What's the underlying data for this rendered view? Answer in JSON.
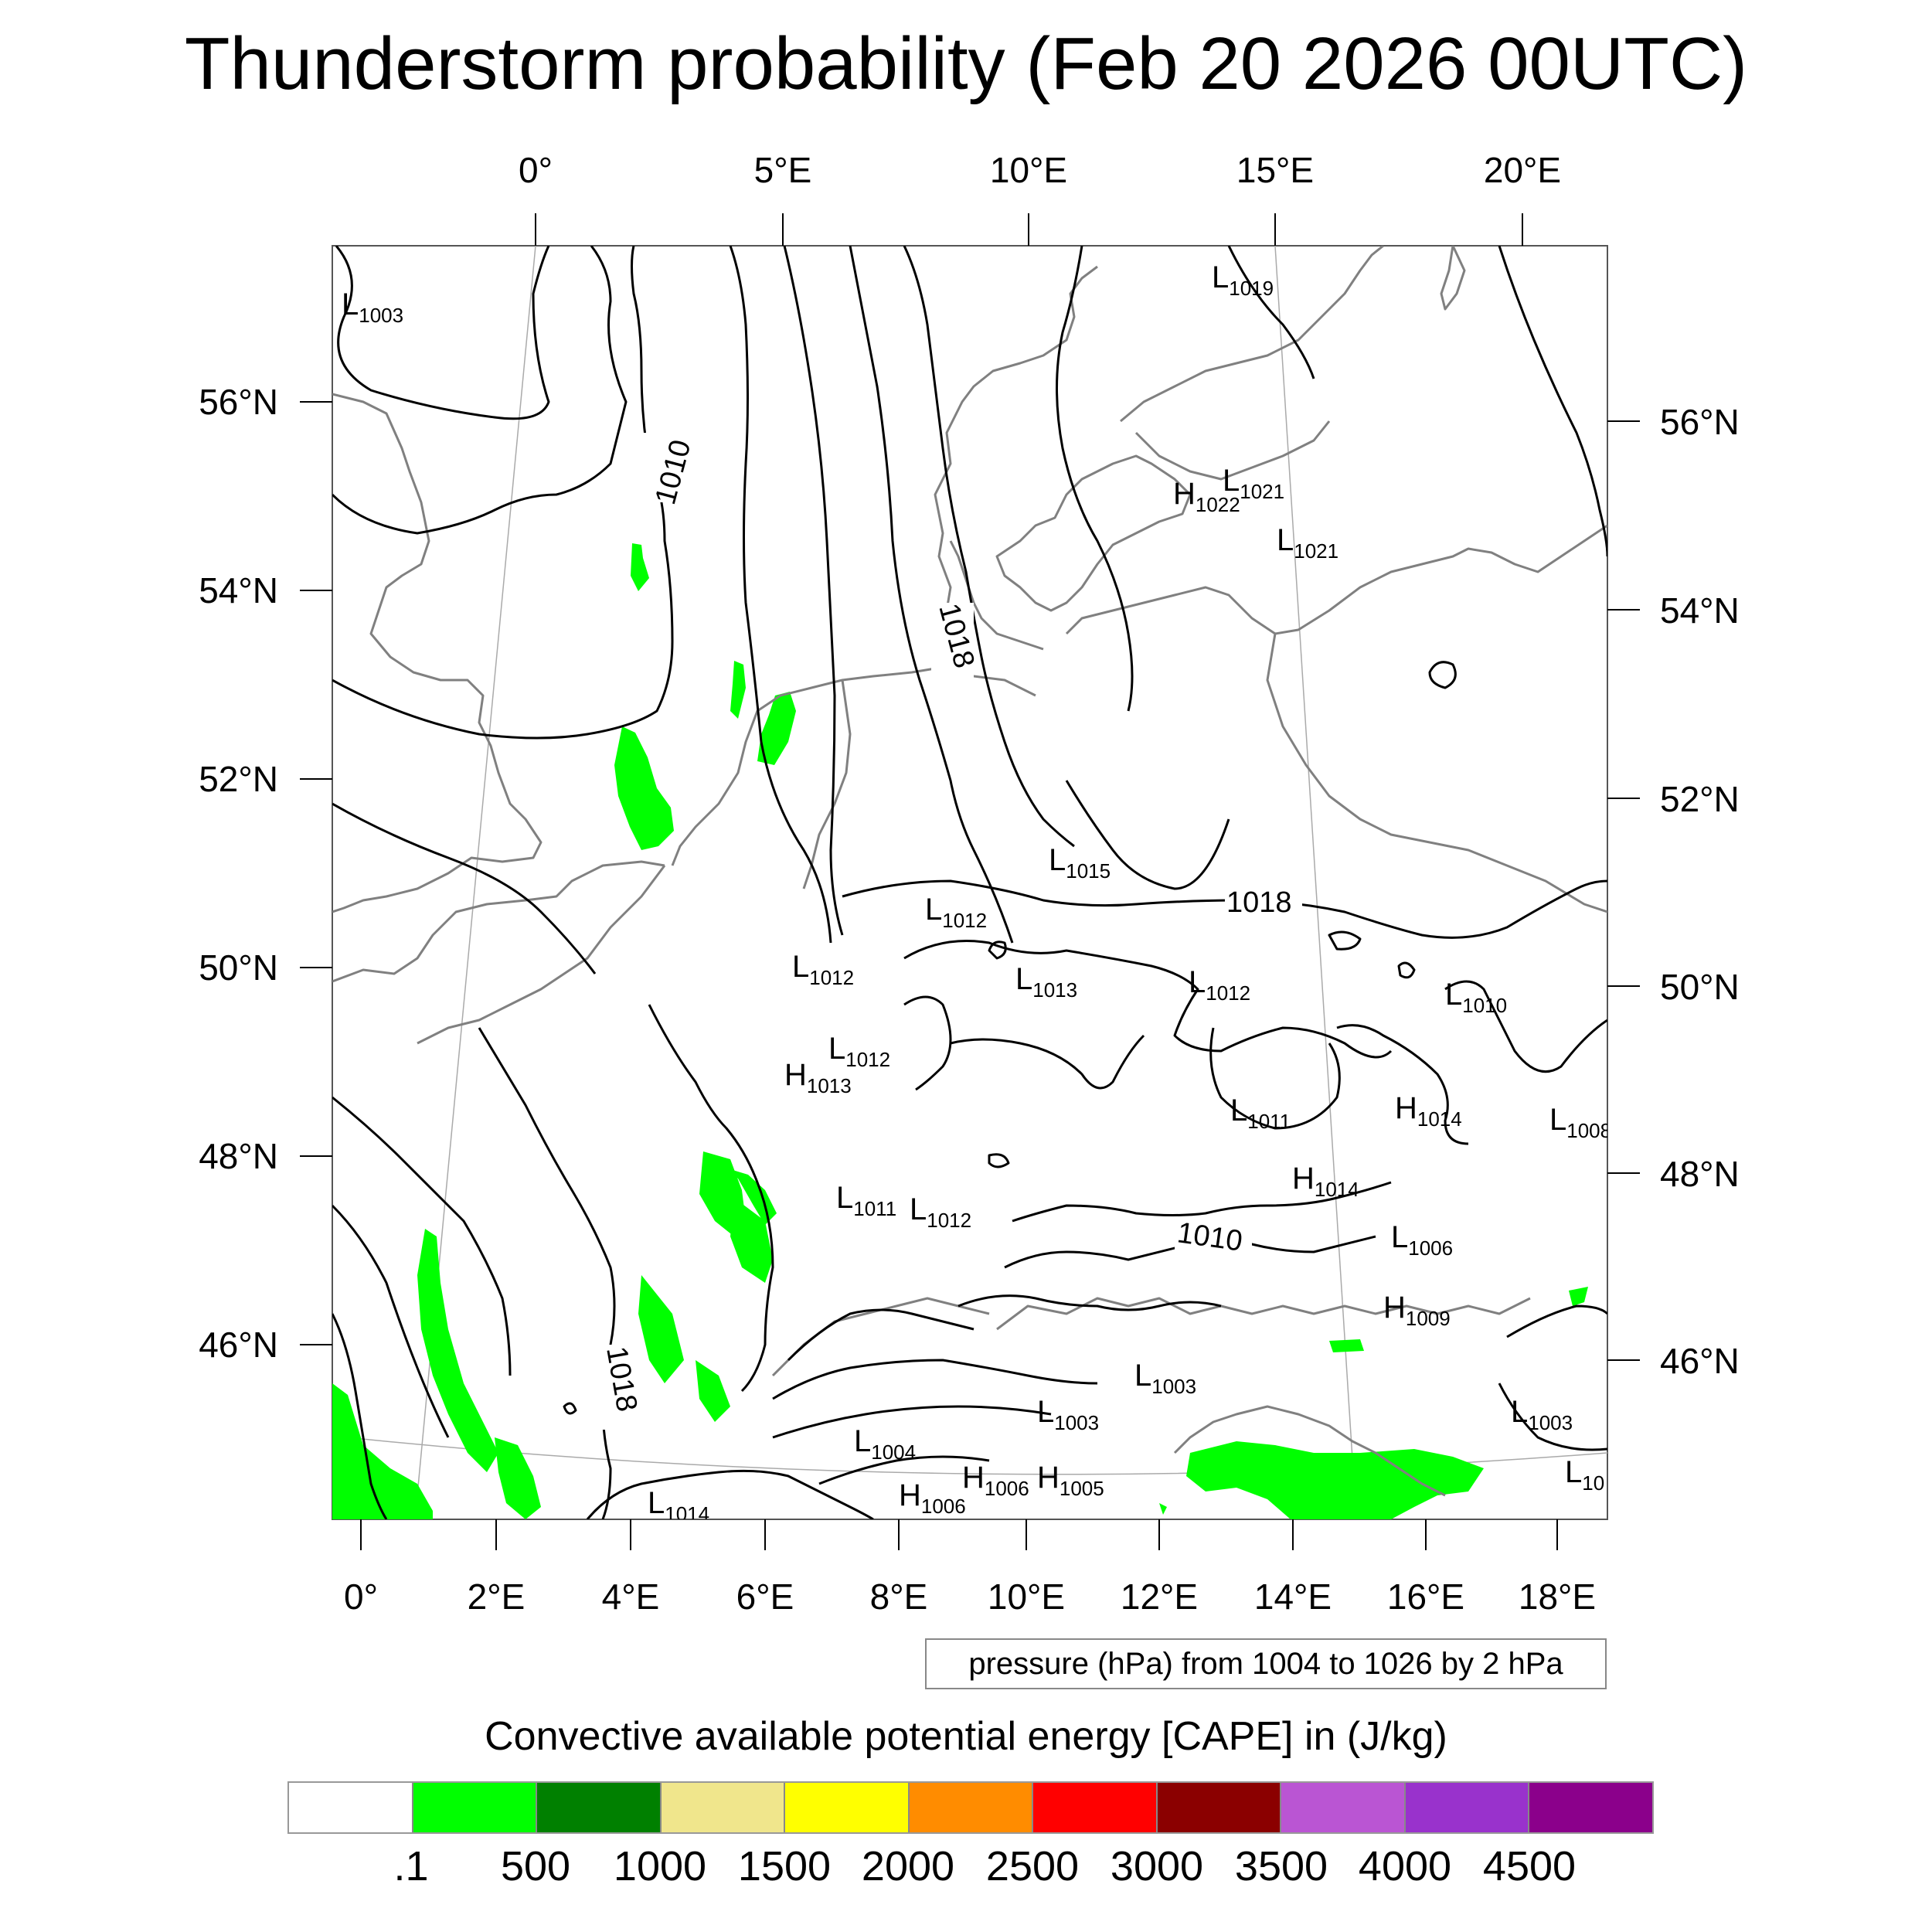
{
  "title": "Thunderstorm probability (Feb 20 2026 00UTC)",
  "axes": {
    "top_lon_ticks": [
      "0°",
      "5°E",
      "10°E",
      "15°E",
      "20°E"
    ],
    "bottom_lon_ticks": [
      "0°",
      "2°E",
      "4°E",
      "6°E",
      "8°E",
      "10°E",
      "12°E",
      "14°E",
      "16°E",
      "18°E"
    ],
    "left_lat_ticks": [
      "56°N",
      "54°N",
      "52°N",
      "50°N",
      "48°N",
      "46°N"
    ],
    "right_lat_ticks": [
      "56°N",
      "54°N",
      "52°N",
      "50°N",
      "48°N",
      "46°N"
    ]
  },
  "contour_labels": {
    "c1010_north": "1010",
    "c1018_north": "1018",
    "c1018_central": "1018",
    "c1010_south": "1010",
    "c1018_southwest": "1018"
  },
  "pressure_centers": [
    {
      "type": "L",
      "value": "1003"
    },
    {
      "type": "L",
      "value": "1019"
    },
    {
      "type": "H",
      "value": "1022"
    },
    {
      "type": "L",
      "value": "1021"
    },
    {
      "type": "L",
      "value": "1021"
    },
    {
      "type": "L",
      "value": "1015"
    },
    {
      "type": "L",
      "value": "1012"
    },
    {
      "type": "L",
      "value": "1012"
    },
    {
      "type": "L",
      "value": "1013"
    },
    {
      "type": "L",
      "value": "1012"
    },
    {
      "type": "L",
      "value": "1010"
    },
    {
      "type": "L",
      "value": "1012"
    },
    {
      "type": "H",
      "value": "1013"
    },
    {
      "type": "L",
      "value": "1011"
    },
    {
      "type": "H",
      "value": "1014"
    },
    {
      "type": "L",
      "value": "1008"
    },
    {
      "type": "H",
      "value": "1014"
    },
    {
      "type": "L",
      "value": "1011"
    },
    {
      "type": "L",
      "value": "1012"
    },
    {
      "type": "L",
      "value": "1006"
    },
    {
      "type": "H",
      "value": "1009"
    },
    {
      "type": "L",
      "value": "1003"
    },
    {
      "type": "L",
      "value": "1003"
    },
    {
      "type": "L",
      "value": "1003"
    },
    {
      "type": "L",
      "value": "1004"
    },
    {
      "type": "H",
      "value": "1006"
    },
    {
      "type": "H",
      "value": "1006"
    },
    {
      "type": "H",
      "value": "1005"
    },
    {
      "type": "L",
      "value": "1014"
    },
    {
      "type": "L",
      "value": "10"
    }
  ],
  "info_box": "pressure (hPa) from 1004 to 1026 by 2 hPa",
  "colorbar": {
    "title": "Convective available potential energy [CAPE] in (J/kg)",
    "colors": [
      "#ffffff",
      "#00ff00",
      "#008000",
      "#f0e68c",
      "#ffff00",
      "#ff8c00",
      "#ff0000",
      "#8b0000",
      "#ba55d3",
      "#9932cc",
      "#8b008b"
    ],
    "labels": [
      ".1",
      "500",
      "1000",
      "1500",
      "2000",
      "2500",
      "3000",
      "3500",
      "4000",
      "4500"
    ]
  },
  "colors": {
    "cape_fill": "#00ff00",
    "coastline": "#808080",
    "isobar": "#000000",
    "grid": "#aaaaaa"
  }
}
